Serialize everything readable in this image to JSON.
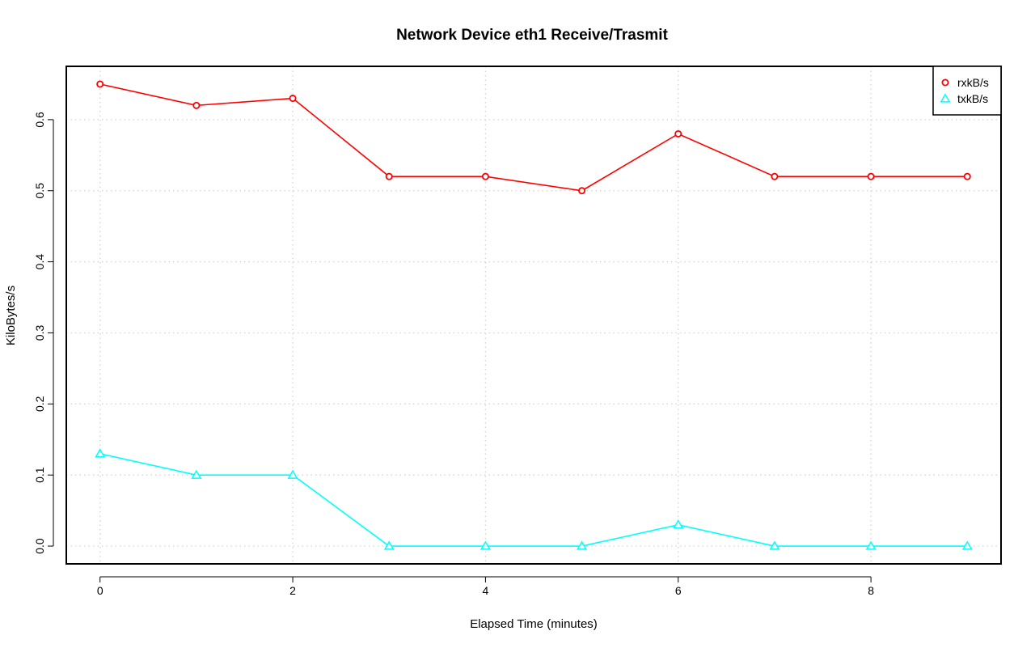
{
  "chart_data": {
    "type": "line",
    "title": "Network Device eth1 Receive/Trasmit",
    "xlabel": "Elapsed Time (minutes)",
    "ylabel": "KiloBytes/s",
    "xlim": [
      -0.35,
      9.35
    ],
    "ylim": [
      -0.025,
      0.675
    ],
    "x_ticks": [
      0,
      2,
      4,
      6,
      8
    ],
    "x_tick_labels": [
      "0",
      "2",
      "4",
      "6",
      "8"
    ],
    "y_ticks": [
      0.0,
      0.1,
      0.2,
      0.3,
      0.4,
      0.5,
      0.6
    ],
    "y_tick_labels": [
      "0.0",
      "0.1",
      "0.2",
      "0.3",
      "0.4",
      "0.5",
      "0.6"
    ],
    "grid": true,
    "legend_position": "top-right",
    "x": [
      0,
      1,
      2,
      3,
      4,
      5,
      6,
      7,
      8,
      9
    ],
    "series": [
      {
        "name": "rxkB/s",
        "color": "#ff0000",
        "marker": "circle",
        "values": [
          0.65,
          0.62,
          0.63,
          0.52,
          0.52,
          0.5,
          0.58,
          0.52,
          0.52,
          0.52
        ]
      },
      {
        "name": "txkB/s",
        "color": "#00ffff",
        "marker": "triangle",
        "values": [
          0.13,
          0.1,
          0.1,
          0.0,
          0.0,
          0.0,
          0.03,
          0.0,
          0.0,
          0.0
        ]
      }
    ]
  }
}
